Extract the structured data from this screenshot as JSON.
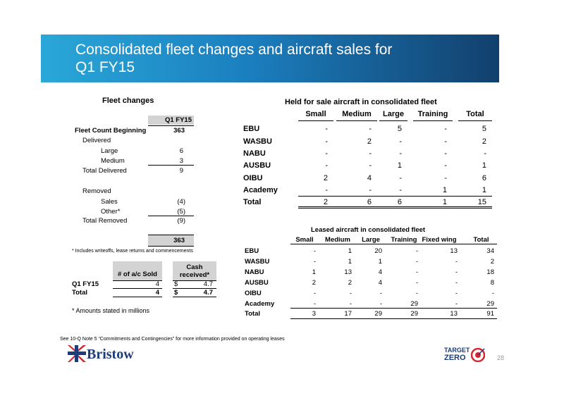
{
  "title": {
    "line1": "Consolidated fleet changes and aircraft sales for",
    "line2": "Q1 FY15"
  },
  "fleet": {
    "heading": "Fleet changes",
    "col": "Q1 FY15",
    "beginning_label": "Fleet Count Beginning",
    "beginning_value": "363",
    "delivered": "Delivered",
    "large_label": "Large",
    "large_value": "6",
    "medium_label": "Medium",
    "medium_value": "3",
    "total_delivered_label": "Total Delivered",
    "total_delivered_value": "9",
    "removed": "Removed",
    "sales_label": "Sales",
    "sales_value": "(4)",
    "other_label": "Other*",
    "other_value": "(5)",
    "total_removed_label": "Total Removed",
    "total_removed_value": "(9)",
    "ending_value": "363",
    "footnote": "* Includes writeoffs, lease returns and commencements"
  },
  "sales": {
    "col1": "# of a/c Sold",
    "col2_line1": "Cash",
    "col2_line2": "received*",
    "rows": [
      {
        "label": "Q1 FY15",
        "sold": "4",
        "cur": "$",
        "cash": "4.7"
      },
      {
        "label": "Total",
        "sold": "4",
        "cur": "$",
        "cash": "4.7"
      }
    ],
    "note": "* Amounts stated in millions"
  },
  "held": {
    "heading": "Held for sale aircraft in consolidated fleet",
    "cols": [
      "Small",
      "Medium",
      "Large",
      "Training",
      "Total"
    ],
    "rows": [
      {
        "label": "EBU",
        "v": [
          "-",
          "-",
          "5",
          "-",
          "5"
        ]
      },
      {
        "label": "WASBU",
        "v": [
          "-",
          "2",
          "-",
          "-",
          "2"
        ]
      },
      {
        "label": "NABU",
        "v": [
          "-",
          "-",
          "-",
          "-",
          "-"
        ]
      },
      {
        "label": "AUSBU",
        "v": [
          "-",
          "-",
          "1",
          "-",
          "1"
        ]
      },
      {
        "label": "OIBU",
        "v": [
          "2",
          "4",
          "-",
          "-",
          "6"
        ]
      },
      {
        "label": "Academy",
        "v": [
          "-",
          "-",
          "-",
          "1",
          "1"
        ]
      },
      {
        "label": "Total",
        "v": [
          "2",
          "6",
          "6",
          "1",
          "15"
        ]
      }
    ]
  },
  "leased": {
    "heading": "Leased aircraft in consolidated fleet",
    "cols": [
      "Small",
      "Medium",
      "Large",
      "Training",
      "Fixed wing",
      "Total"
    ],
    "rows": [
      {
        "label": "EBU",
        "v": [
          "-",
          "1",
          "20",
          "-",
          "13",
          "34"
        ]
      },
      {
        "label": "WASBU",
        "v": [
          "-",
          "1",
          "1",
          "-",
          "-",
          "2"
        ]
      },
      {
        "label": "NABU",
        "v": [
          "1",
          "13",
          "4",
          "-",
          "-",
          "18"
        ]
      },
      {
        "label": "AUSBU",
        "v": [
          "2",
          "2",
          "4",
          "-",
          "-",
          "8"
        ]
      },
      {
        "label": "OIBU",
        "v": [
          "-",
          "-",
          "-",
          "-",
          "-",
          "-"
        ]
      },
      {
        "label": "Academy",
        "v": [
          "-",
          "-",
          "-",
          "29",
          "-",
          "29"
        ]
      },
      {
        "label": "Total",
        "v": [
          "3",
          "17",
          "29",
          "29",
          "13",
          "91"
        ]
      }
    ]
  },
  "bottom_note": "See 10-Q Note 5 “Commitments and Contingencies” for more information provided on operating leases",
  "logo": {
    "text": "Bristow",
    "icon": "bristow-flag-icon"
  },
  "target_zero": {
    "line1": "TARGET",
    "line2": "ZERO",
    "icon": "target-icon"
  },
  "page_number": "28",
  "colors": {
    "title_start": "#2aa7d8",
    "title_end": "#12406d",
    "brand_blue": "#1d3c78",
    "target_red": "#d8262e"
  }
}
